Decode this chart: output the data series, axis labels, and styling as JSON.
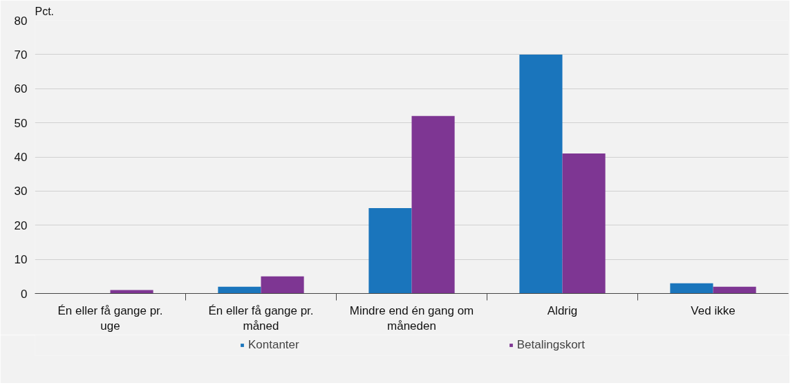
{
  "chart_data": {
    "type": "bar",
    "ylabel": "Pct.",
    "categories": [
      "Én eller få gange pr. uge",
      "Én eller få gange pr. måned",
      "Mindre end én gang om måneden",
      "Aldrig",
      "Ved ikke"
    ],
    "series": [
      {
        "name": "Kontanter",
        "color": "#1a75bc",
        "values": [
          0,
          2,
          25,
          70,
          3
        ]
      },
      {
        "name": "Betalingskort",
        "color": "#7e3693",
        "values": [
          1,
          5,
          52,
          41,
          2
        ]
      }
    ],
    "ylim": [
      0,
      80
    ],
    "yticks": [
      0,
      10,
      20,
      30,
      40,
      50,
      60,
      70,
      80
    ],
    "grid": "y",
    "legend": "bottom"
  }
}
